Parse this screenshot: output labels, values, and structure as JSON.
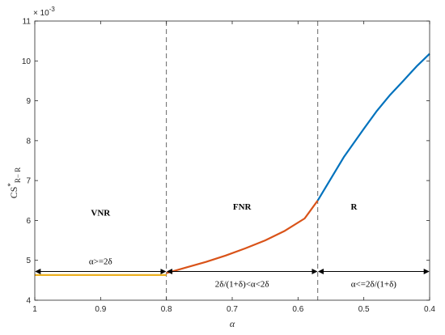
{
  "chart_data": {
    "type": "line",
    "title": "",
    "xlabel": "α",
    "ylabel": "CS*R−R",
    "ylabel_main": "CS",
    "ylabel_sup": "*",
    "ylabel_sub": "R− R",
    "x_reversed": true,
    "xlim": [
      0.4,
      1
    ],
    "ylim": [
      4,
      11
    ],
    "y_multiplier": "× 10",
    "y_multiplier_exp": "-3",
    "xticks": [
      1,
      0.9,
      0.8,
      0.7,
      0.6,
      0.5,
      0.4
    ],
    "xtick_labels": [
      "1",
      "0.9",
      "0.8",
      "0.7",
      "0.6",
      "0.5",
      "0.4"
    ],
    "yticks": [
      4,
      5,
      6,
      7,
      8,
      9,
      10,
      11
    ],
    "ytick_labels": [
      "4",
      "5",
      "6",
      "7",
      "8",
      "9",
      "10",
      "11"
    ],
    "grid": false,
    "boundaries": [
      0.8,
      0.57
    ],
    "series": [
      {
        "color": "#EDB120",
        "x": [
          1.0,
          0.9,
          0.8
        ],
        "y": [
          4.63,
          4.63,
          4.63
        ]
      },
      {
        "color": "#D95319",
        "x": [
          0.8,
          0.77,
          0.74,
          0.71,
          0.68,
          0.65,
          0.62,
          0.59,
          0.57
        ],
        "y": [
          4.68,
          4.82,
          4.96,
          5.12,
          5.3,
          5.5,
          5.74,
          6.05,
          6.5
        ]
      },
      {
        "color": "#0072BD",
        "x": [
          0.57,
          0.55,
          0.53,
          0.5,
          0.48,
          0.46,
          0.44,
          0.42,
          0.4
        ],
        "y": [
          6.5,
          7.05,
          7.6,
          8.3,
          8.75,
          9.15,
          9.5,
          9.86,
          10.18
        ]
      }
    ],
    "regions": [
      {
        "label": "VNR",
        "x": 0.9,
        "y": 6.2
      },
      {
        "label": "FNR",
        "x": 0.685,
        "y": 6.35
      },
      {
        "label": "R",
        "x": 0.515,
        "y": 6.35
      }
    ],
    "ranges": [
      {
        "label": "α>=2δ",
        "from": 1.0,
        "to": 0.8,
        "y": 4.72,
        "label_y": 4.98
      },
      {
        "label": "2δ/(1+δ)<α<2δ",
        "from": 0.8,
        "to": 0.57,
        "y": 4.72,
        "label_y": 4.42
      },
      {
        "label": "α<=2δ/(1+δ)",
        "from": 0.57,
        "to": 0.4,
        "y": 4.72,
        "label_y": 4.42
      }
    ]
  }
}
